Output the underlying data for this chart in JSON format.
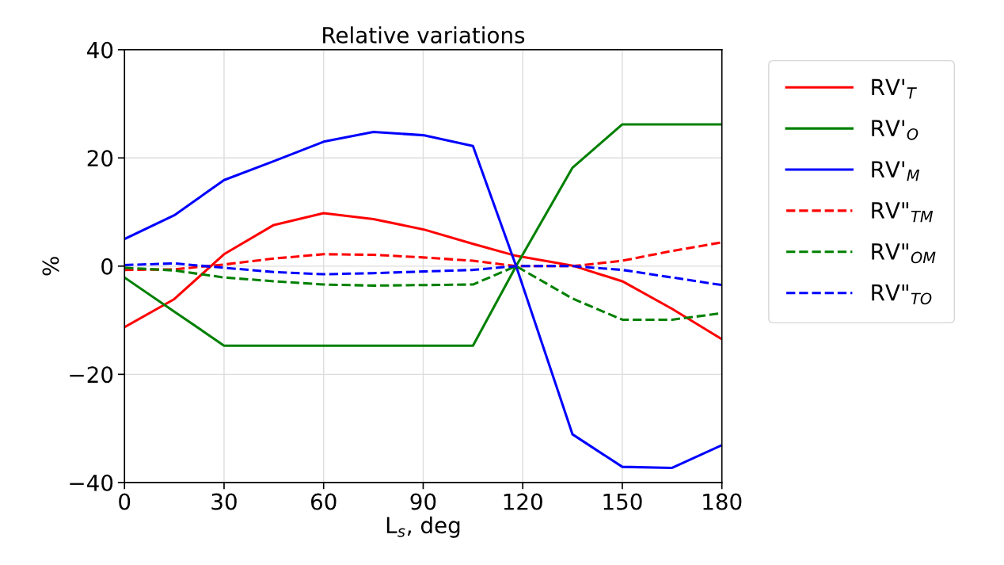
{
  "chart_data": {
    "type": "line",
    "title": "Relative variations",
    "xlabel": "L$_{s}$, deg",
    "ylabel": "%",
    "x": [
      0,
      15,
      30,
      45,
      60,
      75,
      90,
      105,
      118,
      135,
      150,
      165,
      180
    ],
    "xlim": [
      0,
      180
    ],
    "xticks": [
      0,
      30,
      60,
      90,
      120,
      150,
      180
    ],
    "ylim": [
      -40,
      40
    ],
    "yticks": [
      {
        "value": -40,
        "label": "−40"
      },
      {
        "value": -20,
        "label": "−20"
      },
      0,
      20,
      40
    ],
    "grid": true,
    "legend": "right",
    "line_style": "solid",
    "series": [
      {
        "name": "RV'$_{T}$",
        "color": "#ff0000",
        "values": [
          -11.3,
          -6.1,
          2.2,
          7.6,
          9.8,
          8.7,
          6.8,
          4.1,
          1.9,
          0.1,
          -2.8,
          -7.9,
          -13.5
        ]
      },
      {
        "name": "RV'$_{O}$",
        "color": "#008000",
        "values": [
          -2.1,
          -8.4,
          -14.7,
          -14.7,
          -14.7,
          -14.7,
          -14.7,
          -14.7,
          0,
          18.2,
          26.2,
          26.2,
          26.2
        ]
      },
      {
        "name": "RV'$_{M}$",
        "color": "#0000ff",
        "values": [
          5.0,
          9.4,
          15.9,
          19.4,
          23.0,
          24.8,
          24.2,
          22.2,
          0,
          -31.1,
          -37.1,
          -37.3,
          -33.1
        ]
      },
      {
        "name": "RV\"$_{TM}$",
        "color": "#ff0000",
        "line_style": "dashed",
        "values": [
          -0.7,
          -0.6,
          0.3,
          1.4,
          2.2,
          2.1,
          1.6,
          1.0,
          0,
          0,
          1.0,
          2.8,
          4.4
        ]
      },
      {
        "name": "RV\"$_{OM}$",
        "color": "#008000",
        "line_style": "dashed",
        "values": [
          -0.3,
          -0.8,
          -2.1,
          -2.8,
          -3.4,
          -3.6,
          -3.5,
          -3.4,
          0,
          -6.0,
          -9.9,
          -9.9,
          -8.7
        ]
      },
      {
        "name": "RV\"$_{TO}$",
        "color": "#0000ff",
        "line_style": "dashed",
        "values": [
          0.2,
          0.5,
          -0.3,
          -1.1,
          -1.5,
          -1.3,
          -1.0,
          -0.7,
          0,
          0,
          -0.7,
          -2.1,
          -3.5
        ]
      }
    ]
  }
}
